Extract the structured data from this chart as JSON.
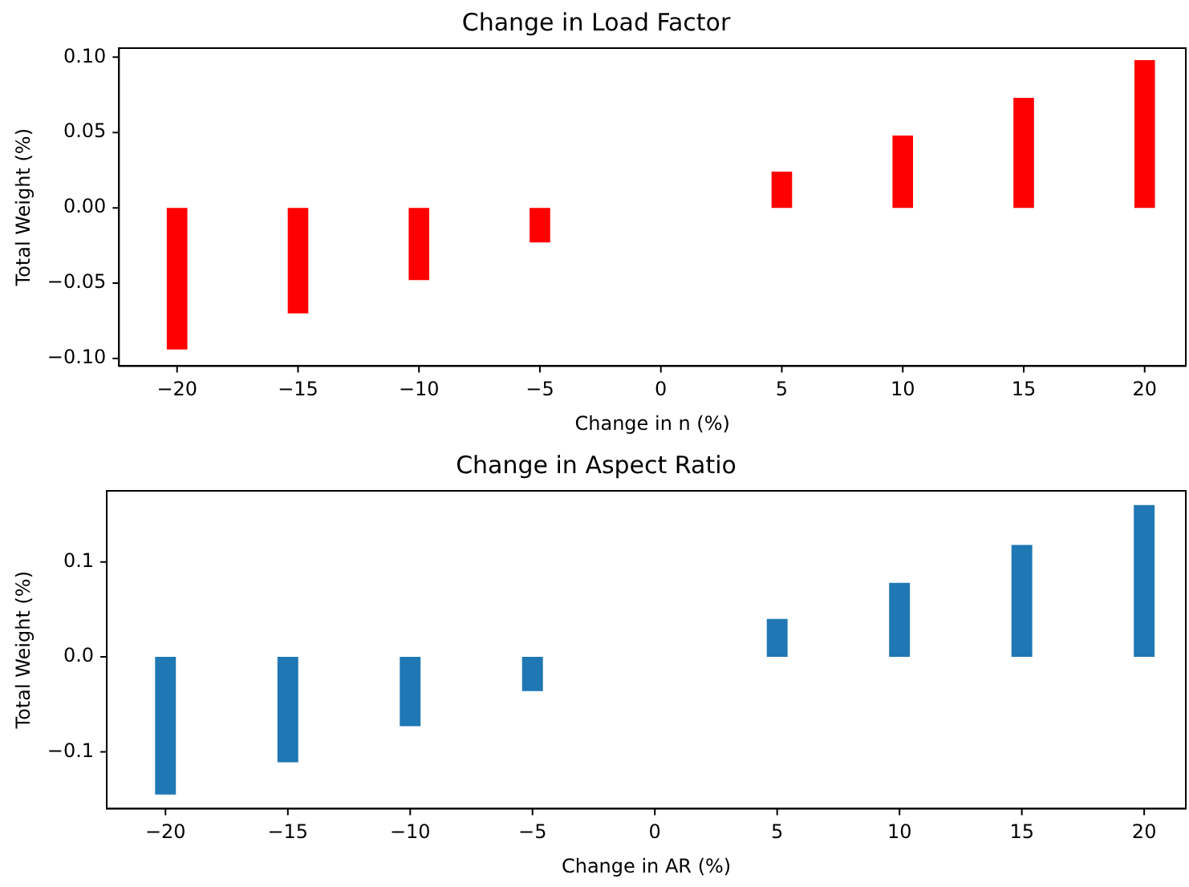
{
  "chart_data": [
    {
      "type": "bar",
      "title": "Change in Load Factor",
      "xlabel": "Change in n (%)",
      "ylabel": "Total Weight (%)",
      "x": [
        -20,
        -15,
        -10,
        -5,
        5,
        10,
        15,
        20
      ],
      "series": [
        {
          "color": "#ff0000",
          "values": [
            -0.094,
            -0.07,
            -0.048,
            -0.023,
            0.024,
            0.048,
            0.073,
            0.098
          ]
        }
      ],
      "xlim": [
        -22.4,
        21.7
      ],
      "xticks": [
        {
          "value": -20,
          "label": "−20"
        },
        {
          "value": -15,
          "label": "−15"
        },
        {
          "value": -10,
          "label": "−10"
        },
        {
          "value": -5,
          "label": "−5"
        },
        0,
        5,
        10,
        15,
        20
      ],
      "ylim": [
        -0.105,
        0.106
      ],
      "yticks": [
        {
          "value": -0.1,
          "label": "−0.10"
        },
        {
          "value": -0.05,
          "label": "−0.05"
        },
        {
          "value": 0,
          "label": "0.00"
        },
        {
          "value": 0.05,
          "label": "0.05"
        },
        {
          "value": 0.1,
          "label": "0.10"
        }
      ],
      "grid": false,
      "legend": false
    },
    {
      "type": "bar",
      "title": "Change in Aspect Ratio",
      "xlabel": "Change in AR (%)",
      "ylabel": "Total Weight (%)",
      "x": [
        -20,
        -15,
        -10,
        -5,
        5,
        10,
        15,
        20
      ],
      "series": [
        {
          "color": "#1f77b4",
          "values": [
            -0.145,
            -0.111,
            -0.073,
            -0.036,
            0.04,
            0.078,
            0.118,
            0.16
          ]
        }
      ],
      "xlim": [
        -22.4,
        21.7
      ],
      "xticks": [
        {
          "value": -20,
          "label": "−20"
        },
        {
          "value": -15,
          "label": "−15"
        },
        {
          "value": -10,
          "label": "−10"
        },
        {
          "value": -5,
          "label": "−5"
        },
        0,
        5,
        10,
        15,
        20
      ],
      "ylim": [
        -0.16,
        0.175
      ],
      "yticks": [
        {
          "value": -0.1,
          "label": "−0.1"
        },
        {
          "value": 0,
          "label": "0.0"
        },
        {
          "value": 0.1,
          "label": "0.1"
        }
      ],
      "grid": false,
      "legend": false
    }
  ]
}
